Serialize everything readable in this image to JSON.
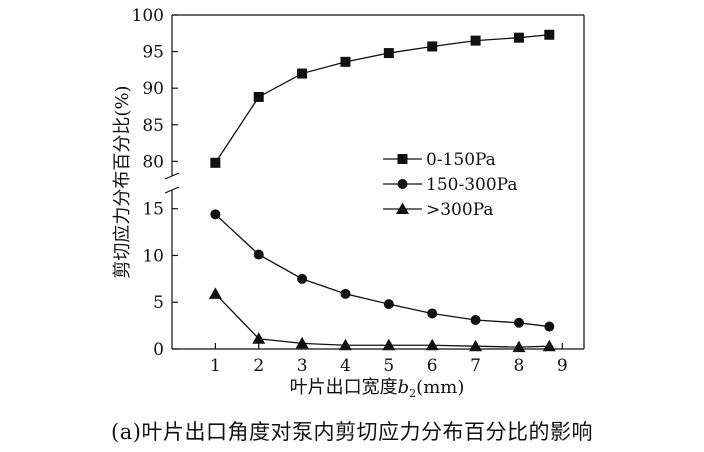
{
  "caption": "(a)叶片出口角度对泵内剪切应力分布百分比的影响",
  "chart_data": {
    "type": "line",
    "title": "",
    "xlabel": "叶片出口宽度",
    "xlabel_var": "b",
    "xlabel_sub": "2",
    "xlabel_unit": "(mm)",
    "ylabel": "剪切应力分布百分比(%)",
    "x_ticks": [
      "1",
      "2",
      "3",
      "4",
      "5",
      "6",
      "7",
      "8",
      "9"
    ],
    "xlim": [
      0,
      9.5
    ],
    "y_axis_break": true,
    "upper_panel": {
      "ylim": [
        78,
        100
      ],
      "ticks": [
        "80",
        "85",
        "90",
        "95",
        "100"
      ]
    },
    "lower_panel": {
      "ylim": [
        0,
        17
      ],
      "ticks": [
        "0",
        "5",
        "10",
        "15"
      ]
    },
    "legend_position": "center-right",
    "series": [
      {
        "name": "0-150Pa",
        "marker": "square",
        "panel": "upper",
        "x": [
          1,
          2,
          3,
          4,
          5,
          6,
          7,
          8,
          8.7
        ],
        "values": [
          79.8,
          88.8,
          92.0,
          93.6,
          94.8,
          95.7,
          96.5,
          96.9,
          97.3
        ]
      },
      {
        "name": "150-300Pa",
        "marker": "circle",
        "panel": "lower",
        "x": [
          1,
          2,
          3,
          4,
          5,
          6,
          7,
          8,
          8.7
        ],
        "values": [
          14.4,
          10.1,
          7.5,
          5.9,
          4.8,
          3.8,
          3.1,
          2.8,
          2.4
        ]
      },
      {
        "name": ">300Pa",
        "marker": "triangle",
        "panel": "lower",
        "x": [
          1,
          2,
          3,
          4,
          5,
          6,
          7,
          8,
          8.7
        ],
        "values": [
          5.9,
          1.1,
          0.6,
          0.4,
          0.4,
          0.4,
          0.3,
          0.2,
          0.3
        ]
      }
    ]
  }
}
